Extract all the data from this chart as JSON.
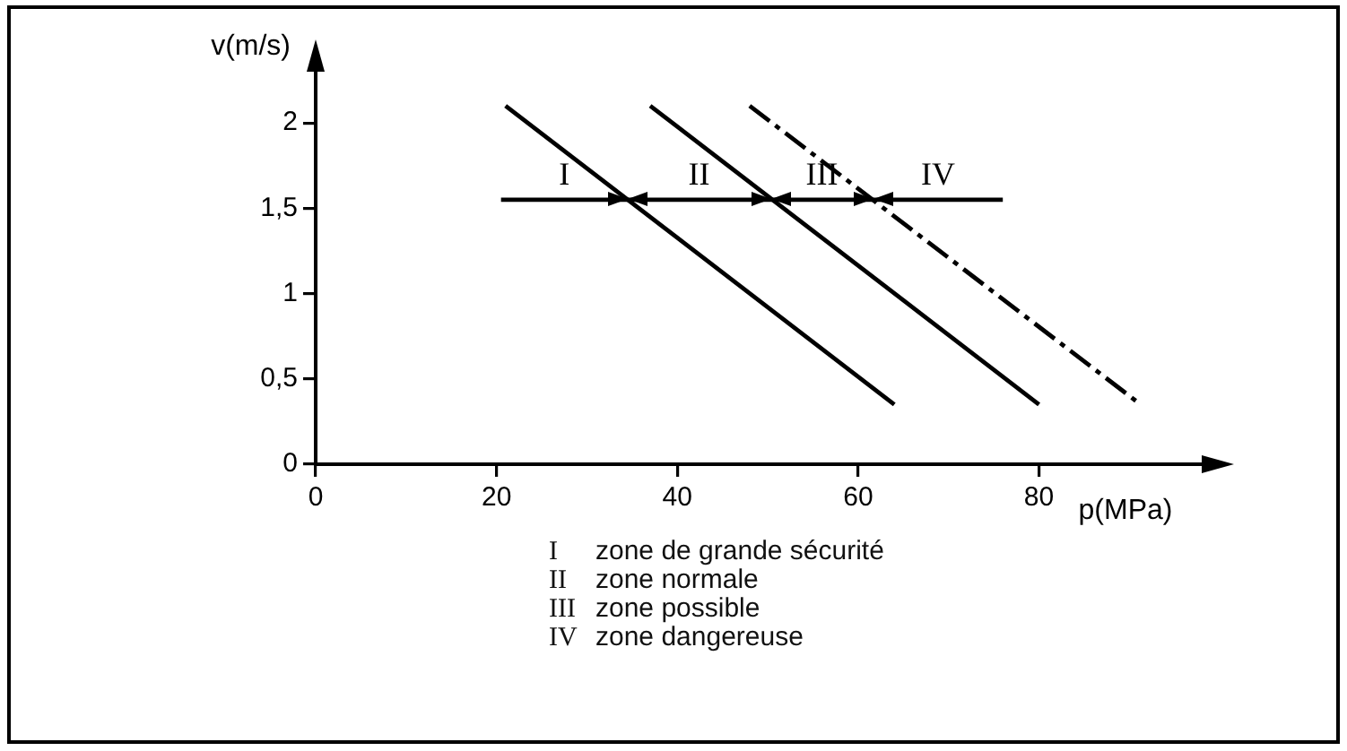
{
  "chart_data": {
    "type": "line",
    "xlabel": "p(MPa)",
    "ylabel": "v(m/s)",
    "xlim": [
      0,
      98
    ],
    "xticks": [
      0,
      20,
      40,
      60,
      80
    ],
    "ylim": [
      0,
      2.3
    ],
    "yticks": [
      0,
      {
        "value": 0.5,
        "label": "0,5"
      },
      1,
      {
        "value": 1.5,
        "label": "1,5"
      },
      2
    ],
    "grid": false,
    "legend": false,
    "marker": "none",
    "series": [
      {
        "color": "#000000",
        "line_style": "solid",
        "x": [
          21,
          64
        ],
        "values": [
          2.1,
          0.35
        ]
      },
      {
        "color": "#000000",
        "line_style": "solid",
        "x": [
          37,
          80
        ],
        "values": [
          2.1,
          0.35
        ]
      },
      {
        "color": "#000000",
        "line_style": "dashed",
        "x": [
          48,
          91
        ],
        "values": [
          2.1,
          0.36
        ]
      },
      {
        "color": "#000000",
        "line_style": "solid",
        "x": [
          20.5,
          34.5,
          50.3,
          61.7,
          76
        ],
        "values": [
          1.55,
          1.55,
          1.55,
          1.55,
          1.55
        ]
      }
    ],
    "annotations": [
      "I",
      "II",
      "III",
      "IV",
      "I zone de grande sécurité",
      "II zone normale",
      "III zone possible",
      "IV zone dangereuse"
    ]
  }
}
